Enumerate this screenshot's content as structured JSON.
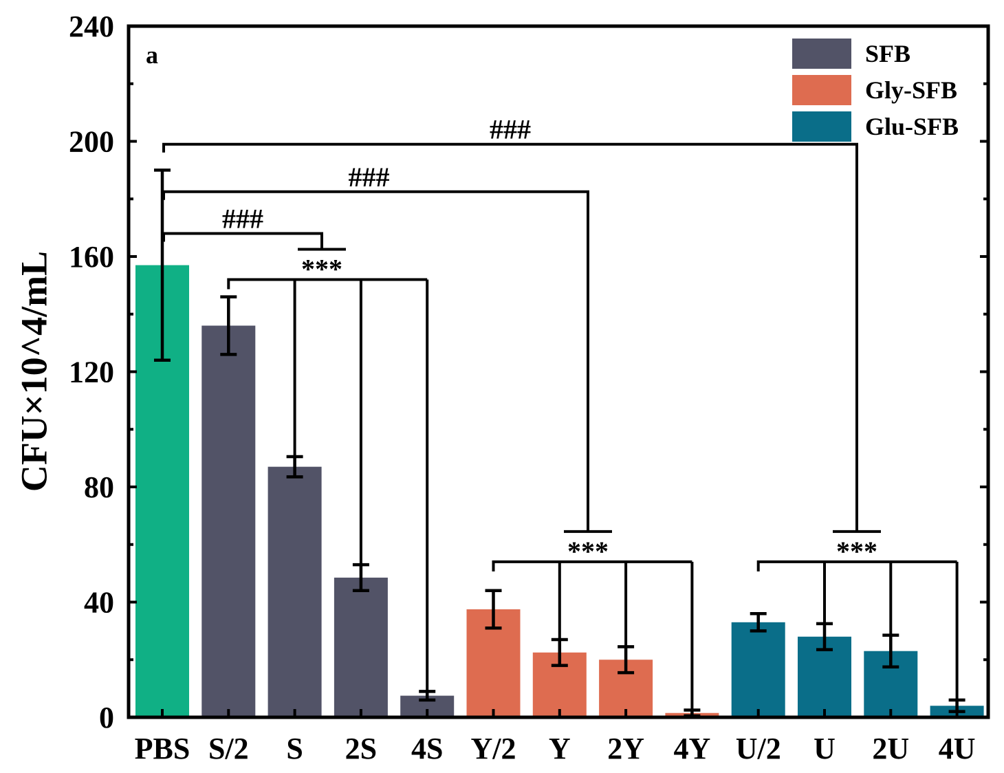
{
  "chart_data": {
    "type": "bar",
    "panel_label": "a",
    "ylabel": "CFU×10^4/mL",
    "xlabel": "",
    "ylim": [
      0,
      240
    ],
    "yticks": [
      "0",
      "40",
      "80",
      "120",
      "160",
      "200",
      "240"
    ],
    "categories": [
      "PBS",
      "S/2",
      "S",
      "2S",
      "4S",
      "Y/2",
      "Y",
      "2Y",
      "4Y",
      "U/2",
      "U",
      "2U",
      "4U"
    ],
    "values": [
      157,
      136,
      87,
      48.5,
      7.5,
      37.5,
      22.5,
      20,
      1.5,
      33,
      28,
      23,
      4
    ],
    "errors": [
      33,
      10,
      3.5,
      4.5,
      1.5,
      6.5,
      4.5,
      4.5,
      1,
      3,
      4.5,
      5.5,
      2
    ],
    "groups": [
      "PBS",
      "SFB",
      "SFB",
      "SFB",
      "SFB",
      "Gly-SFB",
      "Gly-SFB",
      "Gly-SFB",
      "Gly-SFB",
      "Glu-SFB",
      "Glu-SFB",
      "Glu-SFB",
      "Glu-SFB"
    ],
    "colors": {
      "PBS": "#10b085",
      "SFB": "#525367",
      "Gly-SFB": "#de6c50",
      "Glu-SFB": "#0a6e89"
    },
    "legend": {
      "position": "top-right",
      "entries": [
        {
          "name": "SFB",
          "color": "#525367"
        },
        {
          "name": "Gly-SFB",
          "color": "#de6c50"
        },
        {
          "name": "Glu-SFB",
          "color": "#0a6e89"
        }
      ]
    },
    "significance": {
      "hash_label": "###",
      "star_label": "***",
      "hash_brackets": [
        {
          "from": "PBS",
          "to_group": "SFB",
          "y": 168,
          "label": "###"
        },
        {
          "from": "PBS",
          "to_group": "Gly-SFB",
          "y": 182.5,
          "label": "###"
        },
        {
          "from": "PBS",
          "to_group": "Glu-SFB",
          "y": 199,
          "label": "###"
        }
      ],
      "star_brackets": [
        {
          "from": "S/2",
          "to": [
            "S",
            "2S",
            "4S"
          ],
          "y": 152,
          "label": "***"
        },
        {
          "from": "Y/2",
          "to": [
            "Y",
            "2Y",
            "4Y"
          ],
          "y": 54,
          "label": "***"
        },
        {
          "from": "U/2",
          "to": [
            "U",
            "2U",
            "4U"
          ],
          "y": 54,
          "label": "***"
        }
      ]
    }
  }
}
